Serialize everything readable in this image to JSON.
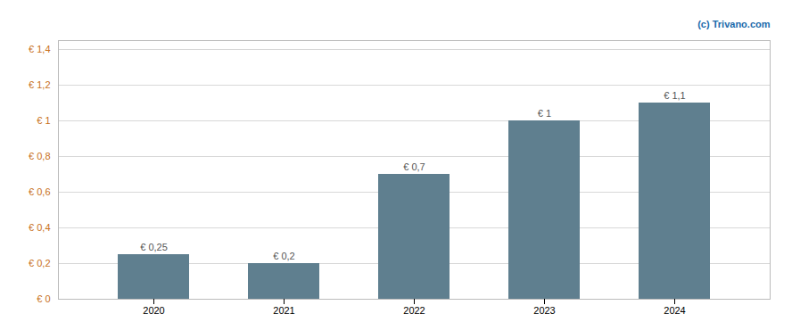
{
  "chart_data": {
    "type": "bar",
    "annotation": "(c) Trivano.com",
    "categories": [
      "2020",
      "2021",
      "2022",
      "2023",
      "2024"
    ],
    "values": [
      0.25,
      0.2,
      0.7,
      1.0,
      1.1
    ],
    "value_labels": [
      "€ 0,25",
      "€ 0,2",
      "€ 0,7",
      "€ 1",
      "€ 1,1"
    ],
    "data_labels": true,
    "color": "#5f7f8f",
    "ylim": [
      0,
      1.45
    ],
    "yticks": [
      {
        "value": 0,
        "label": "€ 0"
      },
      {
        "value": 0.2,
        "label": "€ 0,2"
      },
      {
        "value": 0.4,
        "label": "€ 0,4"
      },
      {
        "value": 0.6,
        "label": "€ 0,6"
      },
      {
        "value": 0.8,
        "label": "€ 0,8"
      },
      {
        "value": 1.0,
        "label": "€ 1"
      },
      {
        "value": 1.2,
        "label": "€ 1,2"
      },
      {
        "value": 1.4,
        "label": "€ 1,4"
      }
    ],
    "grid": true
  }
}
